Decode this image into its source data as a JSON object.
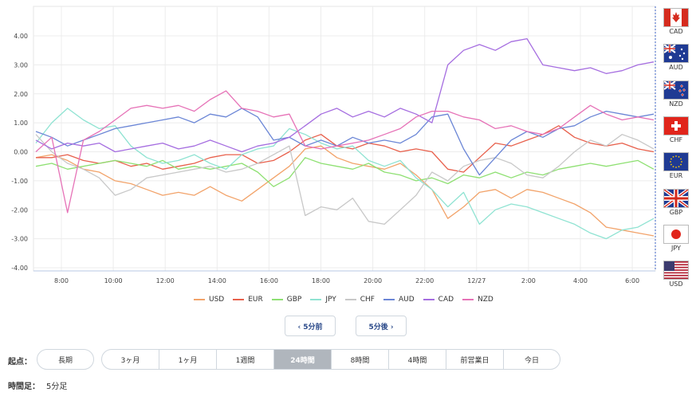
{
  "chart_data": {
    "type": "line",
    "yticks": [
      "4.00",
      "3.00",
      "2.00",
      "1.00",
      "0.00",
      "-1.00",
      "-2.00",
      "-3.00",
      "-4.00"
    ],
    "ylim": [
      -4,
      4
    ],
    "xticks": [
      "8:00",
      "10:00",
      "12:00",
      "14:00",
      "16:00",
      "18:00",
      "20:00",
      "22:00",
      "12/27",
      "2:00",
      "4:00",
      "6:00"
    ],
    "grid": true,
    "legend_position": "bottom",
    "series": [
      {
        "name": "USD",
        "color": "#f2a36a",
        "values": [
          -0.2,
          -0.1,
          -0.3,
          -0.6,
          -0.7,
          -1.0,
          -1.1,
          -1.3,
          -1.5,
          -1.4,
          -1.5,
          -1.2,
          -1.5,
          -1.7,
          -1.3,
          -0.9,
          -0.5,
          0.1,
          0.2,
          -0.2,
          -0.4,
          -0.5,
          -0.6,
          -0.4,
          -0.8,
          -1.3,
          -2.3,
          -1.9,
          -1.4,
          -1.3,
          -1.6,
          -1.3,
          -1.4,
          -1.6,
          -1.8,
          -2.1,
          -2.6,
          -2.7,
          -2.8,
          -2.9
        ]
      },
      {
        "name": "EUR",
        "color": "#e8604c",
        "values": [
          -0.2,
          -0.2,
          -0.1,
          -0.3,
          -0.4,
          -0.3,
          -0.5,
          -0.4,
          -0.6,
          -0.5,
          -0.4,
          -0.2,
          -0.1,
          -0.1,
          -0.4,
          -0.3,
          0.0,
          0.4,
          0.6,
          0.2,
          0.1,
          0.3,
          0.2,
          0.0,
          0.1,
          0.0,
          -0.6,
          -0.7,
          -0.2,
          0.3,
          0.2,
          0.4,
          0.6,
          0.9,
          0.5,
          0.3,
          0.2,
          0.3,
          0.1,
          0.0
        ]
      },
      {
        "name": "GBP",
        "color": "#8ee072",
        "values": [
          -0.5,
          -0.4,
          -0.6,
          -0.5,
          -0.4,
          -0.3,
          -0.4,
          -0.5,
          -0.3,
          -0.6,
          -0.5,
          -0.6,
          -0.5,
          -0.4,
          -0.7,
          -1.2,
          -0.9,
          -0.2,
          -0.4,
          -0.5,
          -0.6,
          -0.4,
          -0.7,
          -0.8,
          -1.0,
          -0.9,
          -1.1,
          -0.8,
          -0.9,
          -0.7,
          -0.9,
          -0.7,
          -0.8,
          -0.6,
          -0.5,
          -0.4,
          -0.5,
          -0.4,
          -0.3,
          -0.6
        ]
      },
      {
        "name": "JPY",
        "color": "#8fe3d2",
        "values": [
          0.3,
          1.0,
          1.5,
          1.1,
          0.8,
          0.9,
          0.2,
          -0.2,
          -0.4,
          -0.3,
          -0.1,
          -0.4,
          -0.6,
          -0.1,
          0.1,
          0.2,
          0.8,
          0.6,
          0.3,
          0.1,
          0.2,
          -0.3,
          -0.5,
          -0.3,
          -0.9,
          -1.3,
          -1.9,
          -1.4,
          -2.5,
          -2.0,
          -1.8,
          -1.9,
          -2.1,
          -2.3,
          -2.5,
          -2.8,
          -3.0,
          -2.7,
          -2.6,
          -2.3
        ]
      },
      {
        "name": "CHF",
        "color": "#c8c8c8",
        "values": [
          0.6,
          0.0,
          -0.4,
          -0.6,
          -0.9,
          -1.5,
          -1.3,
          -0.9,
          -0.8,
          -0.7,
          -0.6,
          -0.5,
          -0.7,
          -0.6,
          -0.4,
          -0.1,
          0.2,
          -2.2,
          -1.9,
          -2.0,
          -1.6,
          -2.4,
          -2.5,
          -2.0,
          -1.5,
          -0.7,
          -1.0,
          -0.5,
          -0.3,
          -0.2,
          -0.4,
          -0.8,
          -0.9,
          -0.5,
          0.0,
          0.4,
          0.2,
          0.6,
          0.4,
          0.1
        ]
      },
      {
        "name": "AUD",
        "color": "#6b86d6",
        "values": [
          0.7,
          0.5,
          0.2,
          0.4,
          0.6,
          0.8,
          0.9,
          1.0,
          1.1,
          1.2,
          1.0,
          1.3,
          1.2,
          1.5,
          1.2,
          0.4,
          0.5,
          0.2,
          0.4,
          0.2,
          0.5,
          0.3,
          0.4,
          0.3,
          0.6,
          1.2,
          1.3,
          0.1,
          -0.8,
          -0.2,
          0.4,
          0.7,
          0.5,
          0.8,
          0.9,
          1.2,
          1.4,
          1.3,
          1.2,
          1.3
        ]
      },
      {
        "name": "CAD",
        "color": "#a56de0",
        "values": [
          0.4,
          0.1,
          0.3,
          0.2,
          0.3,
          0.0,
          0.1,
          0.2,
          0.3,
          0.1,
          0.2,
          0.4,
          0.2,
          0.0,
          0.2,
          0.3,
          0.5,
          0.9,
          1.3,
          1.5,
          1.2,
          1.4,
          1.2,
          1.5,
          1.3,
          1.0,
          3.0,
          3.5,
          3.7,
          3.5,
          3.8,
          3.9,
          3.0,
          2.9,
          2.8,
          2.9,
          2.7,
          2.8,
          3.0,
          3.1
        ]
      },
      {
        "name": "NZD",
        "color": "#e672b7",
        "values": [
          0.0,
          0.5,
          -2.1,
          0.4,
          0.7,
          1.1,
          1.5,
          1.6,
          1.5,
          1.6,
          1.4,
          1.8,
          2.1,
          1.5,
          1.4,
          1.2,
          1.3,
          0.2,
          0.1,
          0.2,
          0.3,
          0.4,
          0.6,
          0.8,
          1.2,
          1.4,
          1.4,
          1.2,
          1.1,
          0.8,
          0.9,
          0.7,
          0.6,
          0.8,
          1.2,
          1.6,
          1.3,
          1.1,
          1.2,
          1.1
        ]
      }
    ]
  },
  "flags": [
    {
      "code": "CAD",
      "icon": "canada-flag-icon"
    },
    {
      "code": "AUD",
      "icon": "australia-flag-icon"
    },
    {
      "code": "NZD",
      "icon": "new-zealand-flag-icon"
    },
    {
      "code": "CHF",
      "icon": "switzerland-flag-icon"
    },
    {
      "code": "EUR",
      "icon": "eu-flag-icon"
    },
    {
      "code": "GBP",
      "icon": "uk-flag-icon"
    },
    {
      "code": "JPY",
      "icon": "japan-flag-icon"
    },
    {
      "code": "USD",
      "icon": "usa-flag-icon"
    }
  ],
  "nav": {
    "prev": "‹ 5分前",
    "next": "5分後 ›"
  },
  "start": {
    "label": "起点：",
    "long_term": "長期",
    "periods": [
      "3ヶ月",
      "1ヶ月",
      "1週間",
      "24時間",
      "8時間",
      "4時間",
      "前営業日",
      "今日"
    ],
    "active": "24時間"
  },
  "timeframe": {
    "label": "時間足：",
    "value": "5分足"
  }
}
